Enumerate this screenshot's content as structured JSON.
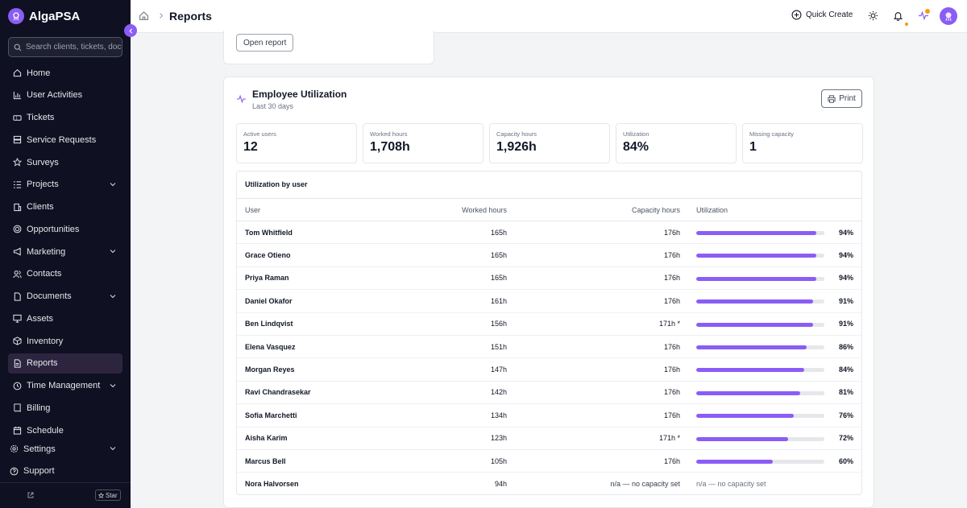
{
  "app": {
    "name": "AlgaPSA"
  },
  "search": {
    "placeholder": "Search clients, tickets, documents..."
  },
  "nav": {
    "items": [
      {
        "label": "Home"
      },
      {
        "label": "User Activities"
      },
      {
        "label": "Tickets"
      },
      {
        "label": "Service Requests"
      },
      {
        "label": "Surveys"
      },
      {
        "label": "Projects"
      },
      {
        "label": "Clients"
      },
      {
        "label": "Opportunities"
      },
      {
        "label": "Marketing"
      },
      {
        "label": "Contacts"
      },
      {
        "label": "Documents"
      },
      {
        "label": "Assets"
      },
      {
        "label": "Inventory"
      },
      {
        "label": "Reports"
      },
      {
        "label": "Time Management"
      },
      {
        "label": "Billing"
      },
      {
        "label": "Schedule"
      }
    ],
    "settings": "Settings",
    "support": "Support",
    "star": "Star"
  },
  "header": {
    "title": "Reports",
    "quick_create": "Quick Create"
  },
  "open_report": "Open report",
  "report": {
    "title": "Employee Utilization",
    "subtitle": "Last 30 days",
    "print": "Print",
    "stats": [
      {
        "label": "Active users",
        "value": "12"
      },
      {
        "label": "Worked hours",
        "value": "1,708h"
      },
      {
        "label": "Capacity hours",
        "value": "1,926h"
      },
      {
        "label": "Utilization",
        "value": "84%"
      },
      {
        "label": "Missing capacity",
        "value": "1"
      }
    ],
    "table": {
      "title": "Utilization by user",
      "headers": {
        "user": "User",
        "worked": "Worked hours",
        "capacity": "Capacity hours",
        "utilization": "Utilization"
      },
      "rows": [
        {
          "user": "Tom Whitfield",
          "worked": "165h",
          "capacity": "176h",
          "util": "94%",
          "fill": 0.94
        },
        {
          "user": "Grace Otieno",
          "worked": "165h",
          "capacity": "176h",
          "util": "94%",
          "fill": 0.94
        },
        {
          "user": "Priya Raman",
          "worked": "165h",
          "capacity": "176h",
          "util": "94%",
          "fill": 0.94
        },
        {
          "user": "Daniel Okafor",
          "worked": "161h",
          "capacity": "176h",
          "util": "91%",
          "fill": 0.91
        },
        {
          "user": "Ben Lindqvist",
          "worked": "156h",
          "capacity": "171h *",
          "util": "91%",
          "fill": 0.91
        },
        {
          "user": "Elena Vasquez",
          "worked": "151h",
          "capacity": "176h",
          "util": "86%",
          "fill": 0.86
        },
        {
          "user": "Morgan Reyes",
          "worked": "147h",
          "capacity": "176h",
          "util": "84%",
          "fill": 0.84
        },
        {
          "user": "Ravi Chandrasekar",
          "worked": "142h",
          "capacity": "176h",
          "util": "81%",
          "fill": 0.81
        },
        {
          "user": "Sofia Marchetti",
          "worked": "134h",
          "capacity": "176h",
          "util": "76%",
          "fill": 0.76
        },
        {
          "user": "Aisha Karim",
          "worked": "123h",
          "capacity": "171h *",
          "util": "72%",
          "fill": 0.72
        },
        {
          "user": "Marcus Bell",
          "worked": "105h",
          "capacity": "176h",
          "util": "60%",
          "fill": 0.6
        },
        {
          "user": "Nora Halvorsen",
          "worked": "94h",
          "capacity": "n/a — no capacity set",
          "util": "n/a — no capacity set",
          "fill": null
        }
      ]
    }
  },
  "colors": {
    "accent": "#8b5cf6",
    "sidebar": "#0f1021",
    "notify": "#f59e0b"
  }
}
